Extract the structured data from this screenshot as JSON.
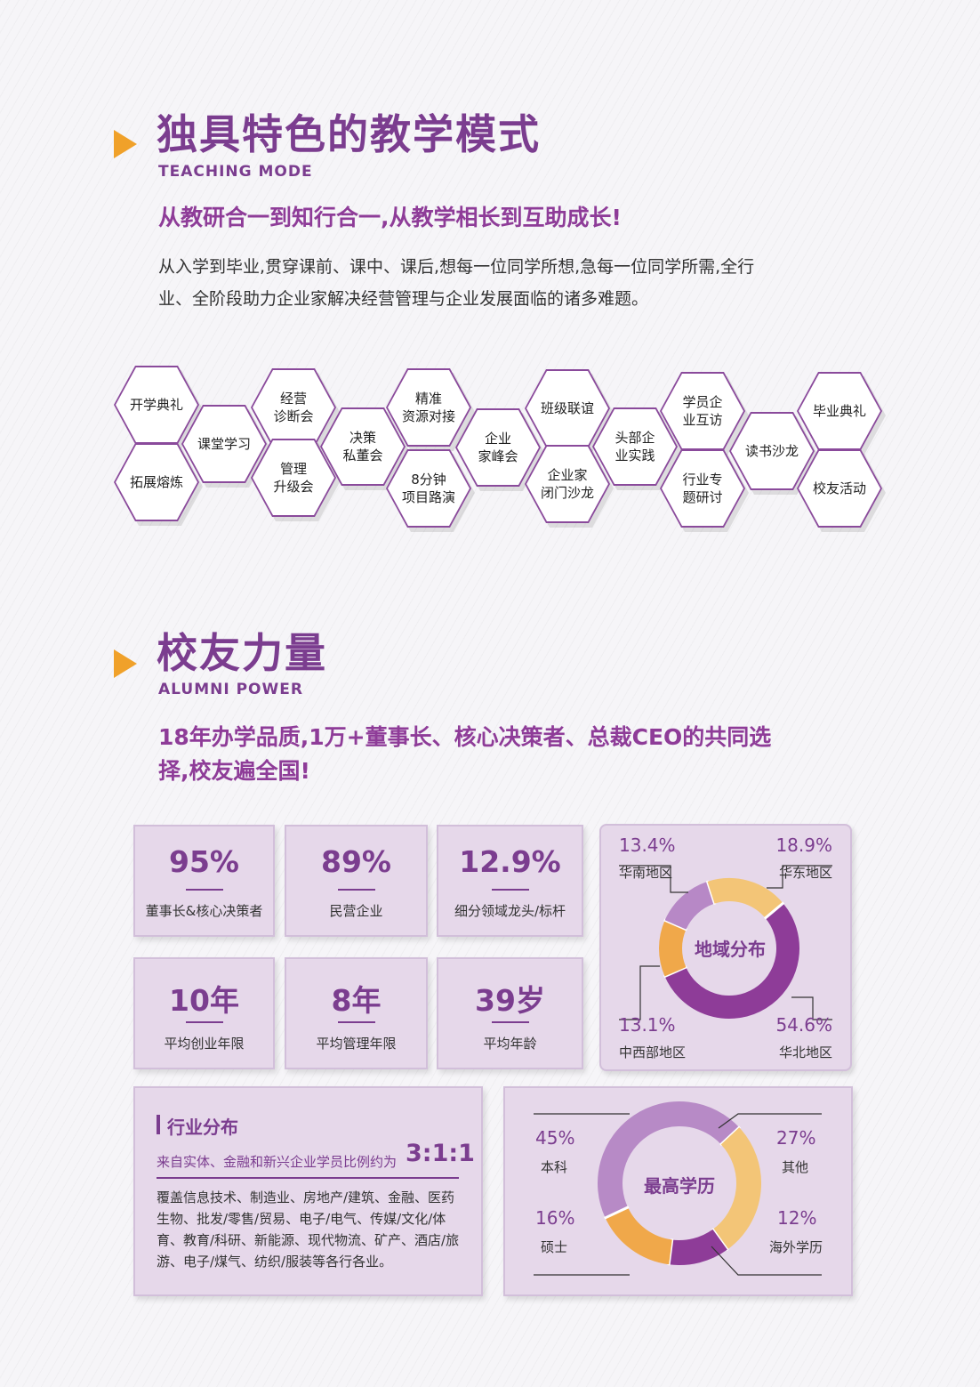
{
  "teaching": {
    "title": "独具特色的教学模式",
    "title_en": "TEACHING MODE",
    "subtitle": "从教研合一到知行合一,从教学相长到互助成长!",
    "para_line1": "从入学到毕业,贯穿课前、课中、课后,想每一位同学所想,急每一位同学所需,全行",
    "para_line2": "业、全阶段助力企业家解决经营管理与企业发展面临的诸多难题。",
    "hexes": [
      "开学典礼",
      "拓展熔炼",
      "课堂学习",
      "经营\n诊断会",
      "管理\n升级会",
      "决策\n私董会",
      "精准\n资源对接",
      "8分钟\n项目路演",
      "企业\n家峰会",
      "班级联谊",
      "企业家\n闭门沙龙",
      "头部企\n业实践",
      "学员企\n业互访",
      "行业专\n题研讨",
      "读书沙龙",
      "毕业典礼",
      "校友活动"
    ]
  },
  "alumni": {
    "title": "校友力量",
    "title_en": "ALUMNI POWER",
    "subtitle_line1": "18年办学品质,1万+董事长、核心决策者、总裁CEO的共同选",
    "subtitle_line2": "择,校友遍全国!",
    "stats": [
      {
        "value": "95%",
        "label": "董事长&核心决策者"
      },
      {
        "value": "89%",
        "label": "民营企业"
      },
      {
        "value": "12.9%",
        "label": "细分领域龙头/标杆"
      },
      {
        "value": "10年",
        "label": "平均创业年限"
      },
      {
        "value": "8年",
        "label": "平均管理年限"
      },
      {
        "value": "39岁",
        "label": "平均年龄"
      }
    ],
    "industry": {
      "title": "行业分布",
      "ratio_text": "来自实体、金融和新兴企业学员比例约为",
      "ratio": "3:1:1",
      "desc_lines": [
        "覆盖信息技术、制造业、房地产/建筑、金融、医药",
        "生物、批发/零售/贸易、电子/电气、传媒/文化/体",
        "育、教育/科研、新能源、现代物流、矿产、酒店/旅",
        "游、电子/煤气、纺织/服装等各行各业。"
      ]
    }
  },
  "chart_data": [
    {
      "type": "pie",
      "title": "地域分布",
      "labels": [
        "华北地区",
        "中西部地区",
        "华南地区",
        "华东地区"
      ],
      "values": [
        54.6,
        13.1,
        13.4,
        18.9
      ],
      "value_labels": [
        "54.6%",
        "13.1%",
        "13.4%",
        "18.9%"
      ],
      "colors": [
        "#8e3c98",
        "#f0a84a",
        "#b788c6",
        "#f3c577"
      ]
    },
    {
      "type": "pie",
      "title": "最高学历",
      "labels": [
        "本科",
        "其他",
        "海外学历",
        "硕士"
      ],
      "values": [
        45,
        27,
        12,
        16
      ],
      "value_labels": [
        "45%",
        "27%",
        "12%",
        "16%"
      ],
      "colors": [
        "#b78ac6",
        "#f3c577",
        "#8e3c98",
        "#f0a84a"
      ]
    }
  ]
}
